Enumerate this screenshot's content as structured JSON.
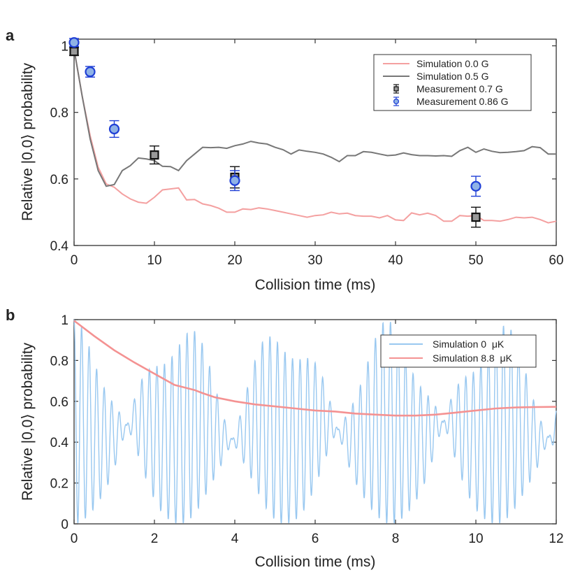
{
  "chart_data": [
    {
      "panel_label": "a",
      "type": "line",
      "title": "",
      "xlabel": "Collision time (ms)",
      "ylabel": "Relative |0,0⟩ probability",
      "xlim": [
        0,
        60
      ],
      "ylim": [
        0.4,
        1.02
      ],
      "xticks": [
        0,
        10,
        20,
        30,
        40,
        50,
        60
      ],
      "yticks": [
        0.4,
        0.6,
        0.8,
        1
      ],
      "xtick_labels": [
        "0",
        "10",
        "20",
        "30",
        "40",
        "50",
        "60"
      ],
      "ytick_labels": [
        "0.4",
        "0.6",
        "0.8",
        "1"
      ],
      "legend_position": "top-right",
      "series": [
        {
          "name": "Simulation 0.0 G",
          "kind": "line",
          "color": "#f4a0a0",
          "x": [
            0,
            1,
            2,
            3,
            4,
            5,
            6,
            7,
            8,
            9,
            10,
            11,
            12,
            13,
            14,
            15,
            16,
            17,
            18,
            19,
            20,
            21,
            22,
            23,
            24,
            25,
            26,
            27,
            28,
            29,
            30,
            31,
            32,
            33,
            34,
            35,
            36,
            37,
            38,
            39,
            40,
            41,
            42,
            43,
            44,
            45,
            46,
            47,
            48,
            49,
            50,
            51,
            52,
            53,
            54,
            55,
            56,
            57,
            58,
            59,
            60
          ],
          "y": [
            0.99,
            0.85,
            0.73,
            0.635,
            0.585,
            0.575,
            0.555,
            0.54,
            0.53,
            0.527,
            0.545,
            0.567,
            0.57,
            0.573,
            0.537,
            0.538,
            0.525,
            0.52,
            0.512,
            0.5,
            0.5,
            0.51,
            0.508,
            0.513,
            0.51,
            0.505,
            0.5,
            0.495,
            0.49,
            0.485,
            0.49,
            0.492,
            0.5,
            0.495,
            0.497,
            0.49,
            0.488,
            0.488,
            0.483,
            0.49,
            0.477,
            0.475,
            0.498,
            0.492,
            0.497,
            0.49,
            0.473,
            0.473,
            0.49,
            0.488,
            0.49,
            0.475,
            0.475,
            0.473,
            0.478,
            0.485,
            0.483,
            0.485,
            0.478,
            0.468,
            0.473
          ]
        },
        {
          "name": "Simulation 0.5 G",
          "kind": "line",
          "color": "#777777",
          "x": [
            0,
            1,
            2,
            3,
            4,
            5,
            6,
            7,
            8,
            9,
            10,
            11,
            12,
            13,
            14,
            15,
            16,
            17,
            18,
            19,
            20,
            21,
            22,
            23,
            24,
            25,
            26,
            27,
            28,
            29,
            30,
            31,
            32,
            33,
            34,
            35,
            36,
            37,
            38,
            39,
            40,
            41,
            42,
            43,
            44,
            45,
            46,
            47,
            48,
            49,
            50,
            51,
            52,
            53,
            54,
            55,
            56,
            57,
            58,
            59,
            60
          ],
          "y": [
            0.99,
            0.85,
            0.72,
            0.625,
            0.578,
            0.583,
            0.625,
            0.64,
            0.663,
            0.66,
            0.655,
            0.638,
            0.637,
            0.625,
            0.655,
            0.675,
            0.695,
            0.694,
            0.695,
            0.692,
            0.7,
            0.705,
            0.713,
            0.708,
            0.705,
            0.695,
            0.688,
            0.675,
            0.687,
            0.683,
            0.68,
            0.675,
            0.665,
            0.652,
            0.67,
            0.67,
            0.682,
            0.68,
            0.675,
            0.67,
            0.672,
            0.678,
            0.673,
            0.67,
            0.67,
            0.669,
            0.67,
            0.668,
            0.685,
            0.695,
            0.68,
            0.69,
            0.683,
            0.679,
            0.68,
            0.682,
            0.685,
            0.697,
            0.694,
            0.675,
            0.675
          ]
        },
        {
          "name": "Measurement 0.7 G",
          "kind": "errorbar",
          "marker": "square",
          "color": "#111111",
          "fill": "#999999",
          "x": [
            0,
            10,
            20,
            50
          ],
          "y": [
            0.983,
            0.672,
            0.605,
            0.485
          ],
          "yerr": [
            0.012,
            0.027,
            0.032,
            0.03
          ]
        },
        {
          "name": "Measurement 0.86 G",
          "kind": "errorbar",
          "marker": "circle",
          "color": "#1f3fd6",
          "fill": "#8fb2e6",
          "x": [
            0,
            2,
            5,
            20,
            50
          ],
          "y": [
            1.01,
            0.922,
            0.75,
            0.595,
            0.578
          ],
          "yerr": [
            0.012,
            0.016,
            0.025,
            0.03,
            0.03
          ]
        }
      ]
    },
    {
      "panel_label": "b",
      "type": "line",
      "title": "",
      "xlabel": "Collision time (ms)",
      "ylabel": "Relative |0,0⟩ probability",
      "xlim": [
        0,
        12
      ],
      "ylim": [
        0,
        1
      ],
      "xticks": [
        0,
        2,
        4,
        6,
        8,
        10,
        12
      ],
      "yticks": [
        0,
        0.2,
        0.4,
        0.6,
        0.8,
        1
      ],
      "xtick_labels": [
        "0",
        "2",
        "4",
        "6",
        "8",
        "10",
        "12"
      ],
      "ytick_labels": [
        "0",
        "0.2",
        "0.4",
        "0.6",
        "0.8",
        "1"
      ],
      "legend_position": "top-right",
      "series": [
        {
          "name": "Simulation 0  μK",
          "kind": "oscillation",
          "color": "#99c8f0",
          "model": "y = (1 + cos(2π·x/0.1875)·|cos(2π·x/5.25)|)/2 · (1 − 0.18·sin²(2π·x/3.1))",
          "fast_period": 0.1875,
          "beat_period": 5.25,
          "x_range": [
            0,
            12
          ]
        },
        {
          "name": "Simulation 8.8  μK",
          "kind": "line",
          "color": "#f49292",
          "x": [
            0,
            0.5,
            1,
            1.5,
            2,
            2.5,
            3,
            3.2,
            3.5,
            4,
            4.5,
            5,
            5.5,
            6,
            6.5,
            7,
            7.5,
            8,
            8.5,
            9,
            9.5,
            10,
            10.5,
            11,
            11.5,
            12
          ],
          "y": [
            0.995,
            0.92,
            0.85,
            0.79,
            0.735,
            0.68,
            0.655,
            0.64,
            0.62,
            0.6,
            0.585,
            0.575,
            0.565,
            0.555,
            0.55,
            0.54,
            0.535,
            0.53,
            0.53,
            0.535,
            0.545,
            0.555,
            0.565,
            0.57,
            0.572,
            0.573
          ]
        }
      ]
    }
  ]
}
